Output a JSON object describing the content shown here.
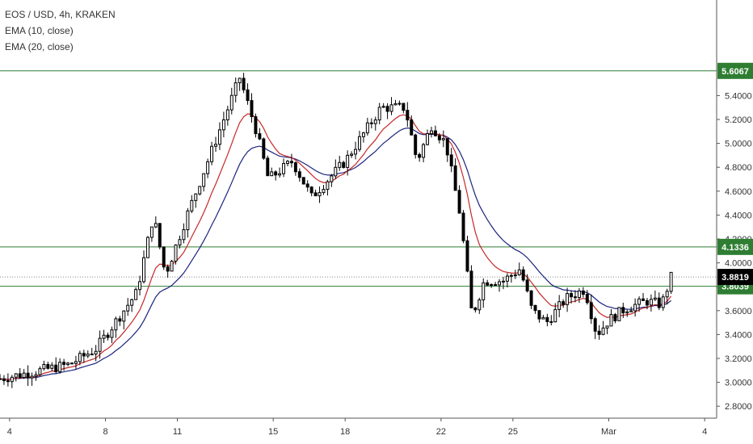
{
  "chart_data": {
    "type": "candlestick",
    "title": "EOS / USD, 4h, KRAKEN",
    "indicators": [
      {
        "name": "EMA (10, close)",
        "color": "#c62828"
      },
      {
        "name": "EMA (20, close)",
        "color": "#1a237e"
      }
    ],
    "ylim": [
      2.7,
      6.2
    ],
    "y_ticks": [
      "2.8000",
      "3.0000",
      "3.2000",
      "3.4000",
      "3.6000",
      "3.8000",
      "4.0000",
      "4.2000",
      "4.4000",
      "4.6000",
      "4.8000",
      "5.0000",
      "5.2000",
      "5.4000"
    ],
    "y_tick_values": [
      2.8,
      3.0,
      3.2,
      3.4,
      3.6,
      3.8,
      4.0,
      4.2,
      4.4,
      4.6,
      4.8,
      5.0,
      5.2,
      5.4
    ],
    "x_ticks": [
      {
        "label": "4",
        "day": 4
      },
      {
        "label": "8",
        "day": 8
      },
      {
        "label": "11",
        "day": 11
      },
      {
        "label": "15",
        "day": 15
      },
      {
        "label": "18",
        "day": 18
      },
      {
        "label": "22",
        "day": 22
      },
      {
        "label": "25",
        "day": 25
      },
      {
        "label": "Mar",
        "day": 29
      },
      {
        "label": "4",
        "day": 33
      }
    ],
    "x_range_days": [
      3.6,
      33.5
    ],
    "horizontal_levels": [
      {
        "value": 5.6067,
        "label": "5.6067",
        "color": "#2e7d32"
      },
      {
        "value": 4.1336,
        "label": "4.1336",
        "color": "#2e7d32"
      },
      {
        "value": 3.8039,
        "label": "3.8039",
        "color": "#2e7d32"
      }
    ],
    "last_price": {
      "value": 3.8819,
      "label": "3.8819",
      "color": "#000000"
    },
    "key_points": [
      {
        "day": 3.6,
        "close": 3.03
      },
      {
        "day": 6.5,
        "close": 3.15
      },
      {
        "day": 7.6,
        "close": 3.28
      },
      {
        "day": 9.3,
        "close": 3.75
      },
      {
        "day": 10.0,
        "close": 4.4
      },
      {
        "day": 10.5,
        "close": 3.9
      },
      {
        "day": 11.5,
        "close": 4.45
      },
      {
        "day": 13.6,
        "close": 5.55
      },
      {
        "day": 14.3,
        "close": 5.1
      },
      {
        "day": 14.8,
        "close": 4.7
      },
      {
        "day": 15.8,
        "close": 4.85
      },
      {
        "day": 16.6,
        "close": 4.55
      },
      {
        "day": 18.0,
        "close": 4.85
      },
      {
        "day": 19.5,
        "close": 5.3
      },
      {
        "day": 20.5,
        "close": 5.3
      },
      {
        "day": 21.0,
        "close": 4.85
      },
      {
        "day": 21.6,
        "close": 5.15
      },
      {
        "day": 22.2,
        "close": 5.0
      },
      {
        "day": 22.8,
        "close": 4.4
      },
      {
        "day": 23.3,
        "close": 3.55
      },
      {
        "day": 23.8,
        "close": 3.85
      },
      {
        "day": 24.6,
        "close": 3.85
      },
      {
        "day": 25.3,
        "close": 3.95
      },
      {
        "day": 25.8,
        "close": 3.6
      },
      {
        "day": 26.4,
        "close": 3.5
      },
      {
        "day": 27.2,
        "close": 3.7
      },
      {
        "day": 28.0,
        "close": 3.78
      },
      {
        "day": 28.5,
        "close": 3.4
      },
      {
        "day": 29.0,
        "close": 3.52
      },
      {
        "day": 29.7,
        "close": 3.62
      },
      {
        "day": 30.6,
        "close": 3.68
      },
      {
        "day": 31.2,
        "close": 3.65
      },
      {
        "day": 31.6,
        "close": 3.88
      }
    ],
    "grid": false,
    "legend_position": "top-left"
  }
}
